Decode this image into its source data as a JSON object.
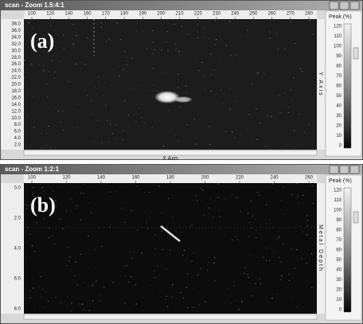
{
  "windows": [
    {
      "title": "scan - Zoom 1.5:4:1",
      "label": "(a)",
      "x_ticks": [
        "100",
        "120",
        "140",
        "160",
        "170",
        "180",
        "190",
        "200",
        "210",
        "220",
        "230",
        "240",
        "250",
        "260",
        "270",
        "280"
      ],
      "y_ticks": [
        "38.0",
        "36.0",
        "34.0",
        "32.0",
        "30.0",
        "28.0",
        "26.0",
        "24.0",
        "22.0",
        "20.0",
        "18.0",
        "16.0",
        "14.0",
        "12.0",
        "10.0",
        "8.0",
        "6.0",
        "4.0",
        "2.0"
      ],
      "x_axis_label": "X Axis",
      "y_axis_label": "Y Axis",
      "colorbar_title": "Peak (%)",
      "colorbar_ticks": [
        "120",
        "110",
        "100",
        "90",
        "80",
        "70",
        "60",
        "50",
        "40",
        "30",
        "20",
        "10",
        "0"
      ]
    },
    {
      "title": "scan - Zoom 1:2:1",
      "label": "(b)",
      "x_ticks": [
        "100",
        "120",
        "140",
        "160",
        "180",
        "200",
        "220",
        "240",
        "260"
      ],
      "y_ticks": [
        "0.0",
        "2.0",
        "4.0",
        "6.0",
        "8.0"
      ],
      "x_axis_label": "",
      "y_axis_label": "Metal Depth",
      "colorbar_title": "Peak (%)",
      "colorbar_ticks": [
        "120",
        "110",
        "100",
        "90",
        "80",
        "70",
        "60",
        "50",
        "40",
        "30",
        "20",
        "10",
        "0"
      ]
    }
  ]
}
